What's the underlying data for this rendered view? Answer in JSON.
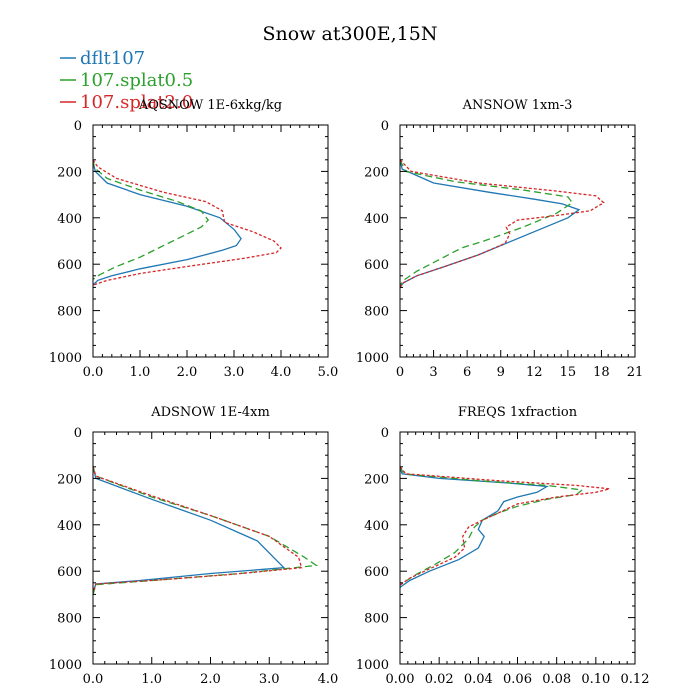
{
  "title": "Snow at300E,15N",
  "legend": [
    {
      "label": "dflt107",
      "color": "#1f77b4",
      "dash": "solid"
    },
    {
      "label": "107.splat0.5",
      "color": "#2ca02c",
      "dash": "dashed"
    },
    {
      "label": "107.splat2.0",
      "color": "#d62728",
      "dash": "dotted"
    }
  ],
  "chart_data": [
    {
      "type": "line",
      "title": "AQSNOW  1E-6xkg/kg",
      "xlim": [
        0,
        5
      ],
      "xticks": [
        0,
        1,
        2,
        3,
        4,
        5
      ],
      "xtick_labels": [
        "0.0",
        "1.0",
        "2.0",
        "3.0",
        "4.0",
        "5.0"
      ],
      "ylim": [
        0,
        1000
      ],
      "yticks": [
        0,
        200,
        400,
        600,
        800,
        1000
      ],
      "y_inverted": true,
      "series": [
        {
          "name": "dflt107",
          "points": [
            [
              0,
              150
            ],
            [
              0.02,
              175
            ],
            [
              0.05,
              200
            ],
            [
              0.3,
              250
            ],
            [
              1,
              300
            ],
            [
              2,
              350
            ],
            [
              2.7,
              400
            ],
            [
              3,
              450
            ],
            [
              3.15,
              490
            ],
            [
              3.05,
              520
            ],
            [
              2.75,
              540
            ],
            [
              2,
              580
            ],
            [
              1,
              620
            ],
            [
              0.4,
              650
            ],
            [
              0.1,
              670
            ],
            [
              0,
              690
            ]
          ]
        },
        {
          "name": "107.splat0.5",
          "points": [
            [
              0,
              150
            ],
            [
              0.03,
              185
            ],
            [
              0.3,
              230
            ],
            [
              1,
              280
            ],
            [
              1.8,
              330
            ],
            [
              2.3,
              370
            ],
            [
              2.45,
              410
            ],
            [
              2.3,
              440
            ],
            [
              1.9,
              480
            ],
            [
              1.5,
              520
            ],
            [
              1,
              570
            ],
            [
              0.5,
              610
            ],
            [
              0.15,
              645
            ],
            [
              0,
              665
            ]
          ]
        },
        {
          "name": "107.splat2.0",
          "points": [
            [
              0,
              150
            ],
            [
              0.1,
              180
            ],
            [
              0.5,
              230
            ],
            [
              1.5,
              290
            ],
            [
              2.4,
              330
            ],
            [
              2.75,
              370
            ],
            [
              2.8,
              420
            ],
            [
              3.4,
              460
            ],
            [
              3.85,
              500
            ],
            [
              4,
              530
            ],
            [
              3.9,
              550
            ],
            [
              3.2,
              575
            ],
            [
              2,
              610
            ],
            [
              1,
              640
            ],
            [
              0.3,
              670
            ],
            [
              0,
              690
            ]
          ]
        }
      ]
    },
    {
      "type": "line",
      "title": "ANSNOW  1xm-3",
      "xlim": [
        0,
        21
      ],
      "xticks": [
        0,
        3,
        6,
        9,
        12,
        15,
        18,
        21
      ],
      "xtick_labels": [
        "0",
        "3",
        "6",
        "9",
        "12",
        "15",
        "18",
        "21"
      ],
      "ylim": [
        0,
        1000
      ],
      "yticks": [
        0,
        200,
        400,
        600,
        800,
        1000
      ],
      "y_inverted": true,
      "series": [
        {
          "name": "dflt107",
          "points": [
            [
              0,
              150
            ],
            [
              0.2,
              190
            ],
            [
              3,
              250
            ],
            [
              8,
              290
            ],
            [
              12,
              320
            ],
            [
              14.5,
              340
            ],
            [
              16,
              365
            ],
            [
              15,
              400
            ],
            [
              12,
              460
            ],
            [
              9.5,
              510
            ],
            [
              7,
              560
            ],
            [
              4,
              610
            ],
            [
              1.5,
              650
            ],
            [
              0.3,
              680
            ],
            [
              0,
              700
            ]
          ]
        },
        {
          "name": "107.splat0.5",
          "points": [
            [
              0,
              150
            ],
            [
              0.5,
              200
            ],
            [
              5,
              245
            ],
            [
              11,
              280
            ],
            [
              15,
              310
            ],
            [
              15.4,
              335
            ],
            [
              14,
              380
            ],
            [
              11,
              440
            ],
            [
              7.5,
              500
            ],
            [
              5.5,
              530
            ],
            [
              3.5,
              580
            ],
            [
              1.5,
              630
            ],
            [
              0.3,
              670
            ],
            [
              0,
              690
            ]
          ]
        },
        {
          "name": "107.splat2.0",
          "points": [
            [
              0,
              150
            ],
            [
              1,
              200
            ],
            [
              7,
              250
            ],
            [
              14,
              285
            ],
            [
              17.5,
              305
            ],
            [
              18.2,
              335
            ],
            [
              17,
              370
            ],
            [
              14,
              390
            ],
            [
              10.5,
              410
            ],
            [
              9.5,
              440
            ],
            [
              9.8,
              470
            ],
            [
              9.4,
              510
            ],
            [
              7,
              560
            ],
            [
              4,
              610
            ],
            [
              1.5,
              650
            ],
            [
              0.3,
              680
            ],
            [
              0,
              700
            ]
          ]
        }
      ]
    },
    {
      "type": "line",
      "title": "ADSNOW  1E-4xm",
      "xlim": [
        0,
        4
      ],
      "xticks": [
        0,
        1,
        2,
        3,
        4
      ],
      "xtick_labels": [
        "0.0",
        "1.0",
        "2.0",
        "3.0",
        "4.0"
      ],
      "ylim": [
        0,
        1000
      ],
      "yticks": [
        0,
        200,
        400,
        600,
        800,
        1000
      ],
      "y_inverted": true,
      "series": [
        {
          "name": "dflt107",
          "points": [
            [
              0,
              150
            ],
            [
              0.05,
              200
            ],
            [
              1,
              290
            ],
            [
              2,
              380
            ],
            [
              2.8,
              470
            ],
            [
              3.15,
              560
            ],
            [
              3.25,
              585
            ],
            [
              2,
              610
            ],
            [
              0.8,
              640
            ],
            [
              0.05,
              655
            ],
            [
              0,
              690
            ]
          ]
        },
        {
          "name": "107.splat0.5",
          "points": [
            [
              0,
              150
            ],
            [
              0.05,
              190
            ],
            [
              1,
              280
            ],
            [
              2,
              360
            ],
            [
              3,
              450
            ],
            [
              3.6,
              540
            ],
            [
              3.8,
              575
            ],
            [
              2.5,
              610
            ],
            [
              1,
              640
            ],
            [
              0.05,
              658
            ],
            [
              0,
              700
            ]
          ]
        },
        {
          "name": "107.splat2.0",
          "points": [
            [
              0,
              150
            ],
            [
              0.05,
              190
            ],
            [
              1,
              275
            ],
            [
              2,
              360
            ],
            [
              3,
              450
            ],
            [
              3.5,
              540
            ],
            [
              3.55,
              585
            ],
            [
              2.3,
              615
            ],
            [
              1,
              640
            ],
            [
              0.05,
              655
            ],
            [
              0,
              690
            ]
          ]
        }
      ]
    },
    {
      "type": "line",
      "title": "FREQS  1xfraction",
      "xlim": [
        0,
        0.12
      ],
      "xticks": [
        0,
        0.02,
        0.04,
        0.06,
        0.08,
        0.1,
        0.12
      ],
      "xtick_labels": [
        "0.00",
        "0.02",
        "0.04",
        "0.06",
        "0.08",
        "0.10",
        "0.12"
      ],
      "ylim": [
        0,
        1000
      ],
      "yticks": [
        0,
        200,
        400,
        600,
        800,
        1000
      ],
      "y_inverted": true,
      "series": [
        {
          "name": "dflt107",
          "points": [
            [
              0,
              150
            ],
            [
              0.001,
              180
            ],
            [
              0.02,
              200
            ],
            [
              0.055,
              220
            ],
            [
              0.075,
              235
            ],
            [
              0.07,
              260
            ],
            [
              0.06,
              280
            ],
            [
              0.053,
              300
            ],
            [
              0.05,
              340
            ],
            [
              0.042,
              380
            ],
            [
              0.04,
              420
            ],
            [
              0.043,
              450
            ],
            [
              0.04,
              500
            ],
            [
              0.03,
              550
            ],
            [
              0.015,
              600
            ],
            [
              0.005,
              640
            ],
            [
              0,
              670
            ]
          ]
        },
        {
          "name": "107.splat0.5",
          "points": [
            [
              0,
              150
            ],
            [
              0.002,
              180
            ],
            [
              0.04,
              210
            ],
            [
              0.075,
              230
            ],
            [
              0.093,
              250
            ],
            [
              0.09,
              270
            ],
            [
              0.075,
              290
            ],
            [
              0.06,
              320
            ],
            [
              0.05,
              350
            ],
            [
              0.042,
              380
            ],
            [
              0.038,
              410
            ],
            [
              0.035,
              460
            ],
            [
              0.028,
              520
            ],
            [
              0.018,
              570
            ],
            [
              0.007,
              620
            ],
            [
              0,
              660
            ]
          ]
        },
        {
          "name": "107.splat2.0",
          "points": [
            [
              0,
              150
            ],
            [
              0.003,
              180
            ],
            [
              0.05,
              210
            ],
            [
              0.09,
              230
            ],
            [
              0.107,
              245
            ],
            [
              0.1,
              260
            ],
            [
              0.08,
              280
            ],
            [
              0.06,
              310
            ],
            [
              0.05,
              350
            ],
            [
              0.042,
              380
            ],
            [
              0.035,
              410
            ],
            [
              0.032,
              450
            ],
            [
              0.033,
              500
            ],
            [
              0.028,
              540
            ],
            [
              0.015,
              590
            ],
            [
              0.005,
              630
            ],
            [
              0,
              660
            ]
          ]
        }
      ]
    }
  ]
}
